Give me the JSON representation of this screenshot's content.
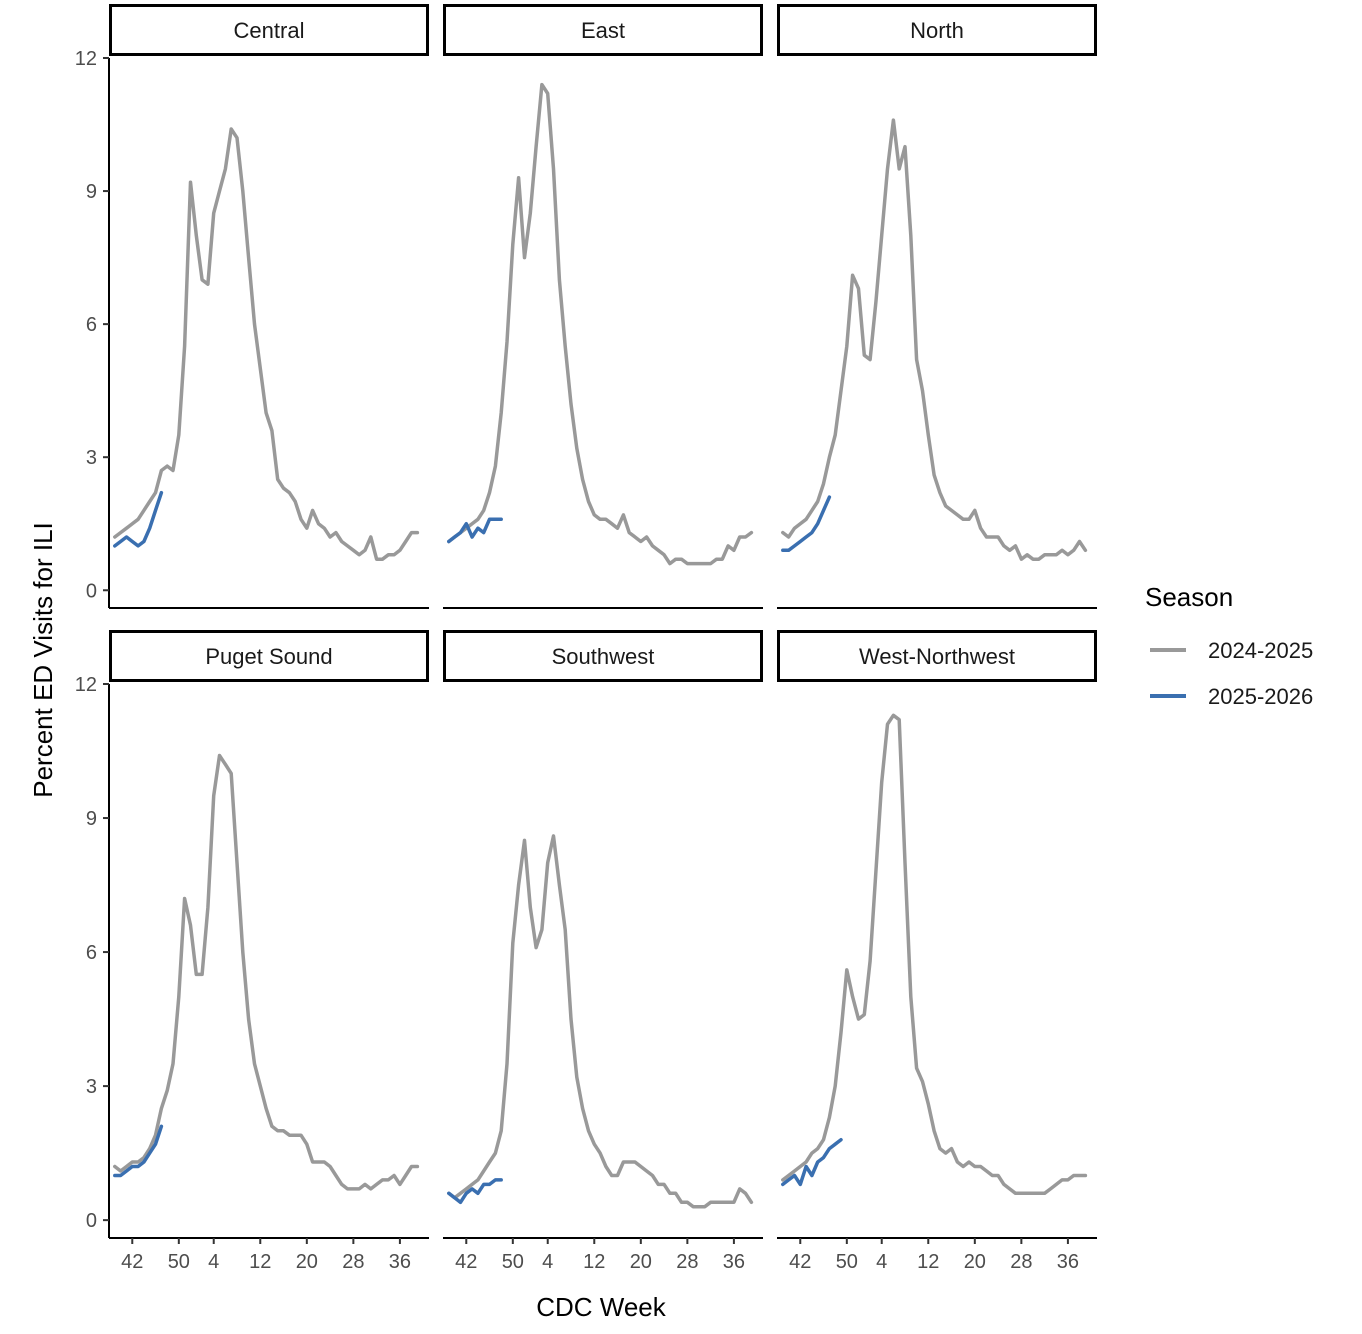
{
  "chart_data": {
    "type": "line",
    "facet_layout": "2x3 grid, shared y axis",
    "xlabel": "CDC Week",
    "ylabel": "Percent ED Visits for ILI",
    "ylim": [
      0,
      12
    ],
    "yticks": [
      0,
      3,
      6,
      9,
      12
    ],
    "x_note": "x values are sequential season weeks starting at CDC week 40",
    "x_tick_positions": [
      3,
      11,
      17,
      25,
      33,
      41,
      49
    ],
    "x_tick_labels": [
      "42",
      "50",
      "4",
      "12",
      "20",
      "28",
      "36"
    ],
    "legend": {
      "title": "Season",
      "position": "right",
      "entries": [
        {
          "name": "2024-2025",
          "color": "#999999"
        },
        {
          "name": "2025-2026",
          "color": "#3a6fb0"
        }
      ]
    },
    "panels": [
      {
        "title": "Central",
        "series": [
          {
            "name": "2024-2025",
            "x": [
              0,
              1,
              2,
              3,
              4,
              5,
              6,
              7,
              8,
              9,
              10,
              11,
              12,
              13,
              14,
              15,
              16,
              17,
              18,
              19,
              20,
              21,
              22,
              23,
              24,
              25,
              26,
              27,
              28,
              29,
              30,
              31,
              32,
              33,
              34,
              35,
              36,
              37,
              38,
              39,
              40,
              41,
              42,
              43,
              44,
              45,
              46,
              47,
              48,
              49,
              50,
              51,
              52
            ],
            "y": [
              1.2,
              1.3,
              1.4,
              1.5,
              1.6,
              1.8,
              2.0,
              2.2,
              2.7,
              2.8,
              2.7,
              3.5,
              5.5,
              9.2,
              8.0,
              7.0,
              6.9,
              8.5,
              9.0,
              9.5,
              10.4,
              10.2,
              9.0,
              7.5,
              6.0,
              5.0,
              4.0,
              3.6,
              2.5,
              2.3,
              2.2,
              2.0,
              1.6,
              1.4,
              1.8,
              1.5,
              1.4,
              1.2,
              1.3,
              1.1,
              1.0,
              0.9,
              0.8,
              0.9,
              1.2,
              0.7,
              0.7,
              0.8,
              0.8,
              0.9,
              1.1,
              1.3,
              1.3
            ]
          },
          {
            "name": "2025-2026",
            "x": [
              0,
              1,
              2,
              3,
              4,
              5,
              6,
              7,
              8
            ],
            "y": [
              1.0,
              1.1,
              1.2,
              1.1,
              1.0,
              1.1,
              1.4,
              1.8,
              2.2
            ]
          }
        ]
      },
      {
        "title": "East",
        "series": [
          {
            "name": "2024-2025",
            "x": [
              0,
              1,
              2,
              3,
              4,
              5,
              6,
              7,
              8,
              9,
              10,
              11,
              12,
              13,
              14,
              15,
              16,
              17,
              18,
              19,
              20,
              21,
              22,
              23,
              24,
              25,
              26,
              27,
              28,
              29,
              30,
              31,
              32,
              33,
              34,
              35,
              36,
              37,
              38,
              39,
              40,
              41,
              42,
              43,
              44,
              45,
              46,
              47,
              48,
              49,
              50,
              51,
              52
            ],
            "y": [
              1.1,
              1.2,
              1.3,
              1.4,
              1.5,
              1.6,
              1.8,
              2.2,
              2.8,
              4.0,
              5.6,
              7.8,
              9.3,
              7.5,
              8.5,
              10.0,
              11.4,
              11.2,
              9.5,
              7.0,
              5.5,
              4.2,
              3.2,
              2.5,
              2.0,
              1.7,
              1.6,
              1.6,
              1.5,
              1.4,
              1.7,
              1.3,
              1.2,
              1.1,
              1.2,
              1.0,
              0.9,
              0.8,
              0.6,
              0.7,
              0.7,
              0.6,
              0.6,
              0.6,
              0.6,
              0.6,
              0.7,
              0.7,
              1.0,
              0.9,
              1.2,
              1.2,
              1.3
            ]
          },
          {
            "name": "2025-2026",
            "x": [
              0,
              1,
              2,
              3,
              4,
              5,
              6,
              7,
              8,
              9
            ],
            "y": [
              1.1,
              1.2,
              1.3,
              1.5,
              1.2,
              1.4,
              1.3,
              1.6,
              1.6,
              1.6
            ]
          }
        ]
      },
      {
        "title": "North",
        "series": [
          {
            "name": "2024-2025",
            "x": [
              0,
              1,
              2,
              3,
              4,
              5,
              6,
              7,
              8,
              9,
              10,
              11,
              12,
              13,
              14,
              15,
              16,
              17,
              18,
              19,
              20,
              21,
              22,
              23,
              24,
              25,
              26,
              27,
              28,
              29,
              30,
              31,
              32,
              33,
              34,
              35,
              36,
              37,
              38,
              39,
              40,
              41,
              42,
              43,
              44,
              45,
              46,
              47,
              48,
              49,
              50,
              51,
              52
            ],
            "y": [
              1.3,
              1.2,
              1.4,
              1.5,
              1.6,
              1.8,
              2.0,
              2.4,
              3.0,
              3.5,
              4.5,
              5.5,
              7.1,
              6.8,
              5.3,
              5.2,
              6.5,
              8.0,
              9.5,
              10.6,
              9.5,
              10.0,
              8.0,
              5.2,
              4.5,
              3.5,
              2.6,
              2.2,
              1.9,
              1.8,
              1.7,
              1.6,
              1.6,
              1.8,
              1.4,
              1.2,
              1.2,
              1.2,
              1.0,
              0.9,
              1.0,
              0.7,
              0.8,
              0.7,
              0.7,
              0.8,
              0.8,
              0.8,
              0.9,
              0.8,
              0.9,
              1.1,
              0.9
            ]
          },
          {
            "name": "2025-2026",
            "x": [
              0,
              1,
              2,
              3,
              4,
              5,
              6,
              7,
              8
            ],
            "y": [
              0.9,
              0.9,
              1.0,
              1.1,
              1.2,
              1.3,
              1.5,
              1.8,
              2.1
            ]
          }
        ]
      },
      {
        "title": "Puget Sound",
        "series": [
          {
            "name": "2024-2025",
            "x": [
              0,
              1,
              2,
              3,
              4,
              5,
              6,
              7,
              8,
              9,
              10,
              11,
              12,
              13,
              14,
              15,
              16,
              17,
              18,
              19,
              20,
              21,
              22,
              23,
              24,
              25,
              26,
              27,
              28,
              29,
              30,
              31,
              32,
              33,
              34,
              35,
              36,
              37,
              38,
              39,
              40,
              41,
              42,
              43,
              44,
              45,
              46,
              47,
              48,
              49,
              50,
              51,
              52
            ],
            "y": [
              1.2,
              1.1,
              1.2,
              1.3,
              1.3,
              1.4,
              1.6,
              1.9,
              2.5,
              2.9,
              3.5,
              5.0,
              7.2,
              6.6,
              5.5,
              5.5,
              7.0,
              9.5,
              10.4,
              10.2,
              10.0,
              8.0,
              6.0,
              4.5,
              3.5,
              3.0,
              2.5,
              2.1,
              2.0,
              2.0,
              1.9,
              1.9,
              1.9,
              1.7,
              1.3,
              1.3,
              1.3,
              1.2,
              1.0,
              0.8,
              0.7,
              0.7,
              0.7,
              0.8,
              0.7,
              0.8,
              0.9,
              0.9,
              1.0,
              0.8,
              1.0,
              1.2,
              1.2
            ]
          },
          {
            "name": "2025-2026",
            "x": [
              0,
              1,
              2,
              3,
              4,
              5,
              6,
              7,
              8
            ],
            "y": [
              1.0,
              1.0,
              1.1,
              1.2,
              1.2,
              1.3,
              1.5,
              1.7,
              2.1
            ]
          }
        ]
      },
      {
        "title": "Southwest",
        "series": [
          {
            "name": "2024-2025",
            "x": [
              0,
              1,
              2,
              3,
              4,
              5,
              6,
              7,
              8,
              9,
              10,
              11,
              12,
              13,
              14,
              15,
              16,
              17,
              18,
              19,
              20,
              21,
              22,
              23,
              24,
              25,
              26,
              27,
              28,
              29,
              30,
              31,
              32,
              33,
              34,
              35,
              36,
              37,
              38,
              39,
              40,
              41,
              42,
              43,
              44,
              45,
              46,
              47,
              48,
              49,
              50,
              51,
              52
            ],
            "y": [
              0.6,
              0.5,
              0.6,
              0.7,
              0.8,
              0.9,
              1.1,
              1.3,
              1.5,
              2.0,
              3.5,
              6.2,
              7.5,
              8.5,
              7.0,
              6.1,
              6.5,
              8.0,
              8.6,
              7.5,
              6.5,
              4.5,
              3.2,
              2.5,
              2.0,
              1.7,
              1.5,
              1.2,
              1.0,
              1.0,
              1.3,
              1.3,
              1.3,
              1.2,
              1.1,
              1.0,
              0.8,
              0.8,
              0.6,
              0.6,
              0.4,
              0.4,
              0.3,
              0.3,
              0.3,
              0.4,
              0.4,
              0.4,
              0.4,
              0.4,
              0.7,
              0.6,
              0.4
            ]
          },
          {
            "name": "2025-2026",
            "x": [
              0,
              1,
              2,
              3,
              4,
              5,
              6,
              7,
              8,
              9
            ],
            "y": [
              0.6,
              0.5,
              0.4,
              0.6,
              0.7,
              0.6,
              0.8,
              0.8,
              0.9,
              0.9
            ]
          }
        ]
      },
      {
        "title": "West-Northwest",
        "series": [
          {
            "name": "2024-2025",
            "x": [
              0,
              1,
              2,
              3,
              4,
              5,
              6,
              7,
              8,
              9,
              10,
              11,
              12,
              13,
              14,
              15,
              16,
              17,
              18,
              19,
              20,
              21,
              22,
              23,
              24,
              25,
              26,
              27,
              28,
              29,
              30,
              31,
              32,
              33,
              34,
              35,
              36,
              37,
              38,
              39,
              40,
              41,
              42,
              43,
              44,
              45,
              46,
              47,
              48,
              49,
              50,
              51,
              52
            ],
            "y": [
              0.9,
              1.0,
              1.1,
              1.2,
              1.3,
              1.5,
              1.6,
              1.8,
              2.3,
              3.0,
              4.2,
              5.6,
              5.0,
              4.5,
              4.6,
              5.8,
              7.8,
              9.8,
              11.1,
              11.3,
              11.2,
              8.0,
              5.0,
              3.4,
              3.1,
              2.6,
              2.0,
              1.6,
              1.5,
              1.6,
              1.3,
              1.2,
              1.3,
              1.2,
              1.2,
              1.1,
              1.0,
              1.0,
              0.8,
              0.7,
              0.6,
              0.6,
              0.6,
              0.6,
              0.6,
              0.6,
              0.7,
              0.8,
              0.9,
              0.9,
              1.0,
              1.0,
              1.0
            ]
          },
          {
            "name": "2025-2026",
            "x": [
              0,
              1,
              2,
              3,
              4,
              5,
              6,
              7,
              8,
              9,
              10
            ],
            "y": [
              0.8,
              0.9,
              1.0,
              0.8,
              1.2,
              1.0,
              1.3,
              1.4,
              1.6,
              1.7,
              1.8
            ]
          }
        ]
      }
    ]
  }
}
